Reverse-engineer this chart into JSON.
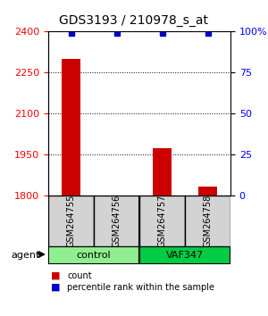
{
  "title": "GDS3193 / 210978_s_at",
  "samples": [
    "GSM264755",
    "GSM264756",
    "GSM264757",
    "GSM264758"
  ],
  "counts": [
    2300,
    1802,
    1975,
    1835
  ],
  "percentiles": [
    99,
    99,
    99,
    99
  ],
  "groups": [
    "control",
    "control",
    "VAF347",
    "VAF347"
  ],
  "group_labels": [
    "control",
    "VAF347"
  ],
  "group_colors": [
    "#90EE90",
    "#00CC00"
  ],
  "bar_color": "#CC0000",
  "percentile_color": "#0000CC",
  "ylim_left": [
    1800,
    2400
  ],
  "ylim_right": [
    0,
    100
  ],
  "yticks_left": [
    1800,
    1950,
    2100,
    2250,
    2400
  ],
  "yticks_right": [
    0,
    25,
    50,
    75,
    100
  ],
  "ytick_labels_right": [
    "0",
    "25",
    "50",
    "75",
    "100%"
  ],
  "background_color": "#ffffff",
  "plot_bg_color": "#ffffff",
  "legend_count_label": "count",
  "legend_pct_label": "percentile rank within the sample",
  "agent_label": "agent"
}
